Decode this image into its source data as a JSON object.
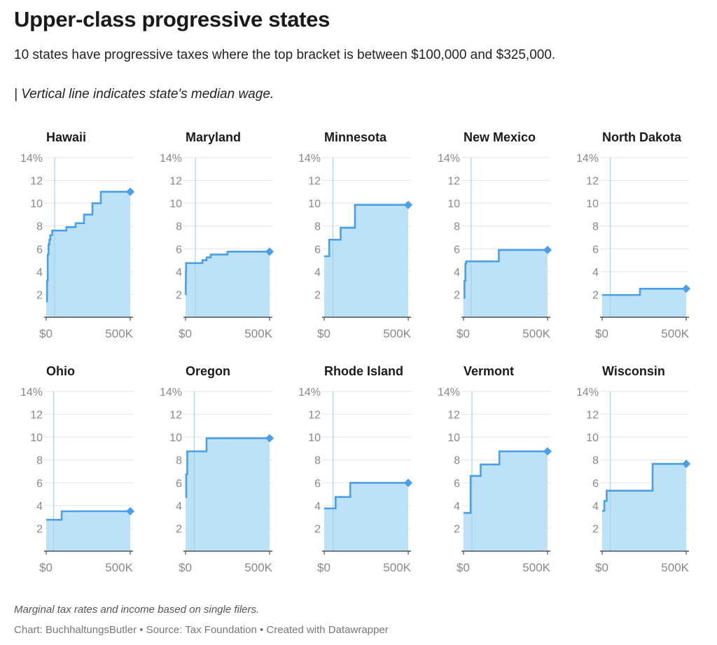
{
  "header": {
    "title": "Upper-class progressive states",
    "subtitle": "10 states have progressive taxes where the top bracket is between $100,000 and $325,000.",
    "note": "| Vertical line indicates state's median wage."
  },
  "footer": {
    "footnote": "Marginal tax rates and income based on single filers.",
    "credit": "Chart: BuchhaltungsButler • Source: Tax Foundation • Created with Datawrapper"
  },
  "colors": {
    "line": "#4a9fe6",
    "fill": "#bde2f8",
    "median_line": "#9fd3ef",
    "grid": "#e3e3e3",
    "axis_text": "#888888",
    "title_text": "#1a1a1a"
  },
  "chart_data": {
    "type": "area",
    "step": true,
    "ylim": [
      0,
      14
    ],
    "yticks": [
      2,
      4,
      6,
      8,
      10,
      12,
      14
    ],
    "ytick_labels": [
      "2",
      "4",
      "6",
      "8",
      "10",
      "12",
      "14%"
    ],
    "xlim": [
      0,
      500000
    ],
    "xtick_labels": [
      "$0",
      "500K"
    ],
    "grid": true,
    "panels": [
      {
        "name": "Hawaii",
        "median_wage": 50000,
        "points": [
          [
            0,
            1.4
          ],
          [
            5000,
            3.2
          ],
          [
            9000,
            5.5
          ],
          [
            14000,
            6.4
          ],
          [
            19000,
            6.8
          ],
          [
            24000,
            7.2
          ],
          [
            36000,
            7.6
          ],
          [
            48000,
            7.6
          ],
          [
            120000,
            7.9
          ],
          [
            175000,
            8.25
          ],
          [
            225000,
            9.0
          ],
          [
            275000,
            10.0
          ],
          [
            325000,
            11.0
          ],
          [
            500000,
            11.0
          ]
        ]
      },
      {
        "name": "Maryland",
        "median_wage": 58000,
        "points": [
          [
            0,
            2.0
          ],
          [
            1000,
            3.0
          ],
          [
            2000,
            4.0
          ],
          [
            3000,
            4.75
          ],
          [
            100000,
            5.0
          ],
          [
            125000,
            5.25
          ],
          [
            150000,
            5.5
          ],
          [
            250000,
            5.75
          ],
          [
            500000,
            5.75
          ]
        ]
      },
      {
        "name": "Minnesota",
        "median_wage": 52000,
        "points": [
          [
            0,
            5.35
          ],
          [
            30000,
            6.8
          ],
          [
            98000,
            7.85
          ],
          [
            183000,
            9.85
          ],
          [
            500000,
            9.85
          ]
        ]
      },
      {
        "name": "New Mexico",
        "median_wage": 45000,
        "points": [
          [
            0,
            1.7
          ],
          [
            5500,
            3.2
          ],
          [
            11000,
            4.7
          ],
          [
            16000,
            4.9
          ],
          [
            210000,
            5.9
          ],
          [
            500000,
            5.9
          ]
        ]
      },
      {
        "name": "North Dakota",
        "median_wage": 48000,
        "points": [
          [
            0,
            1.95
          ],
          [
            225000,
            2.5
          ],
          [
            500000,
            2.5
          ]
        ]
      },
      {
        "name": "Ohio",
        "median_wage": 44000,
        "points": [
          [
            0,
            2.75
          ],
          [
            92000,
            3.5
          ],
          [
            500000,
            3.5
          ]
        ]
      },
      {
        "name": "Oregon",
        "median_wage": 52000,
        "points": [
          [
            0,
            4.75
          ],
          [
            4000,
            6.75
          ],
          [
            10000,
            8.75
          ],
          [
            125000,
            9.9
          ],
          [
            500000,
            9.9
          ]
        ]
      },
      {
        "name": "Rhode Island",
        "median_wage": 53000,
        "points": [
          [
            0,
            3.75
          ],
          [
            68000,
            4.75
          ],
          [
            155000,
            5.99
          ],
          [
            500000,
            5.99
          ]
        ]
      },
      {
        "name": "Vermont",
        "median_wage": 50000,
        "points": [
          [
            0,
            3.35
          ],
          [
            42000,
            6.6
          ],
          [
            102000,
            7.6
          ],
          [
            213000,
            8.75
          ],
          [
            500000,
            8.75
          ]
        ]
      },
      {
        "name": "Wisconsin",
        "median_wage": 48000,
        "points": [
          [
            0,
            3.54
          ],
          [
            13000,
            4.4
          ],
          [
            27000,
            5.3
          ],
          [
            300000,
            7.65
          ],
          [
            500000,
            7.65
          ]
        ]
      }
    ]
  }
}
